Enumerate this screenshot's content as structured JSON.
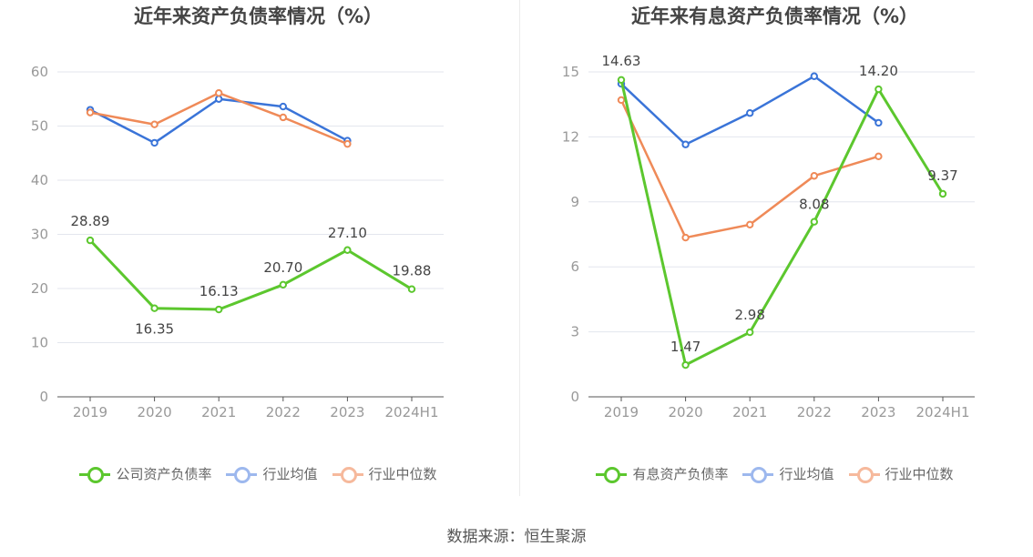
{
  "chart_data": [
    {
      "type": "line",
      "title": "近年来资产负债率情况（%）",
      "categories": [
        "2019",
        "2020",
        "2021",
        "2022",
        "2023",
        "2024H1"
      ],
      "ylim": [
        0,
        60
      ],
      "yticks": [
        0,
        10,
        20,
        30,
        40,
        50,
        60
      ],
      "grid": true,
      "legend_position": "bottom",
      "series": [
        {
          "name": "公司资产负债率",
          "color": "#5cc72e",
          "values": [
            28.89,
            16.35,
            16.13,
            20.7,
            27.1,
            19.88
          ],
          "labels": [
            "28.89",
            "16.35",
            "16.13",
            "20.70",
            "27.10",
            "19.88"
          ]
        },
        {
          "name": "行业均值",
          "color": "#3a74d8",
          "values": [
            53.0,
            46.9,
            55.0,
            53.6,
            47.3,
            null
          ]
        },
        {
          "name": "行业中位数",
          "color": "#ef8a58",
          "values": [
            52.5,
            50.3,
            56.1,
            51.6,
            46.7,
            null
          ]
        }
      ]
    },
    {
      "type": "line",
      "title": "近年来有息资产负债率情况（%）",
      "categories": [
        "2019",
        "2020",
        "2021",
        "2022",
        "2023",
        "2024H1"
      ],
      "ylim": [
        0,
        15
      ],
      "yticks": [
        0,
        3,
        6,
        9,
        12,
        15
      ],
      "grid": true,
      "legend_position": "bottom",
      "series": [
        {
          "name": "有息资产负债率",
          "color": "#5cc72e",
          "values": [
            14.63,
            1.47,
            2.98,
            8.08,
            14.2,
            9.37
          ],
          "labels": [
            "14.63",
            "1.47",
            "2.98",
            "8.08",
            "14.20",
            "9.37"
          ]
        },
        {
          "name": "行业均值",
          "color": "#3a74d8",
          "values": [
            14.45,
            11.65,
            13.1,
            14.8,
            12.65,
            null
          ]
        },
        {
          "name": "行业中位数",
          "color": "#ef8a58",
          "values": [
            13.7,
            7.35,
            7.95,
            10.2,
            11.1,
            null
          ]
        }
      ]
    }
  ],
  "footer": {
    "source": "数据来源：恒生聚源"
  }
}
